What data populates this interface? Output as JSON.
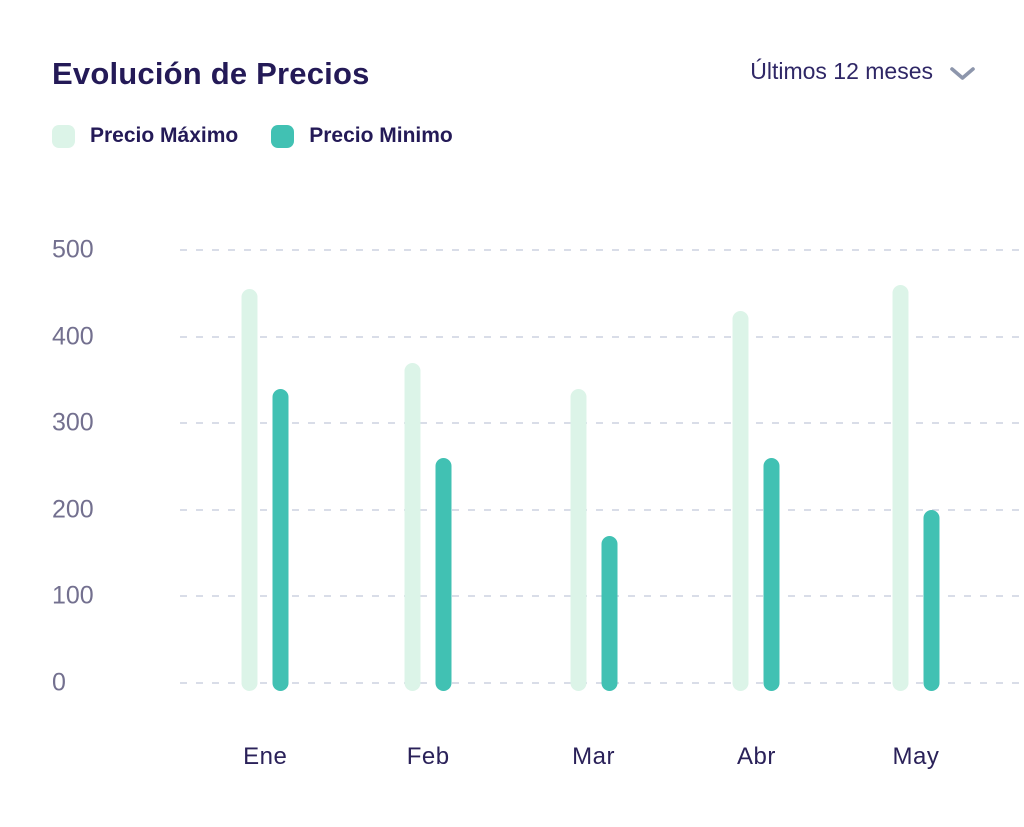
{
  "header": {
    "title": "Evolución de Precios",
    "range_selector": {
      "label": "Últimos 12 meses"
    }
  },
  "legend": [
    {
      "label": "Precio Máximo",
      "color": "#dcf4e8"
    },
    {
      "label": "Precio Minimo",
      "color": "#41c1b3"
    }
  ],
  "chart_data": {
    "type": "bar",
    "title": "Evolución de Precios",
    "categories": [
      "Ene",
      "Feb",
      "Mar",
      "Abr",
      "May"
    ],
    "series": [
      {
        "name": "Precio Máximo",
        "color": "#dcf4e8",
        "values": [
          455,
          370,
          340,
          430,
          460
        ]
      },
      {
        "name": "Precio Minimo",
        "color": "#41c1b3",
        "values": [
          340,
          260,
          170,
          260,
          200
        ]
      }
    ],
    "xlabel": "",
    "ylabel": "",
    "ylim": [
      0,
      500
    ],
    "yticks": [
      500,
      400,
      300,
      200,
      100,
      0
    ],
    "grid": "horizontal-dashed",
    "legend_position": "top-left"
  },
  "colors": {
    "background": "#ffffff",
    "title_text": "#241a57",
    "axis_tick_text": "#73708f",
    "category_text": "#2a2159",
    "gridline": "#d9dde8",
    "chevron": "#8d96ac"
  }
}
